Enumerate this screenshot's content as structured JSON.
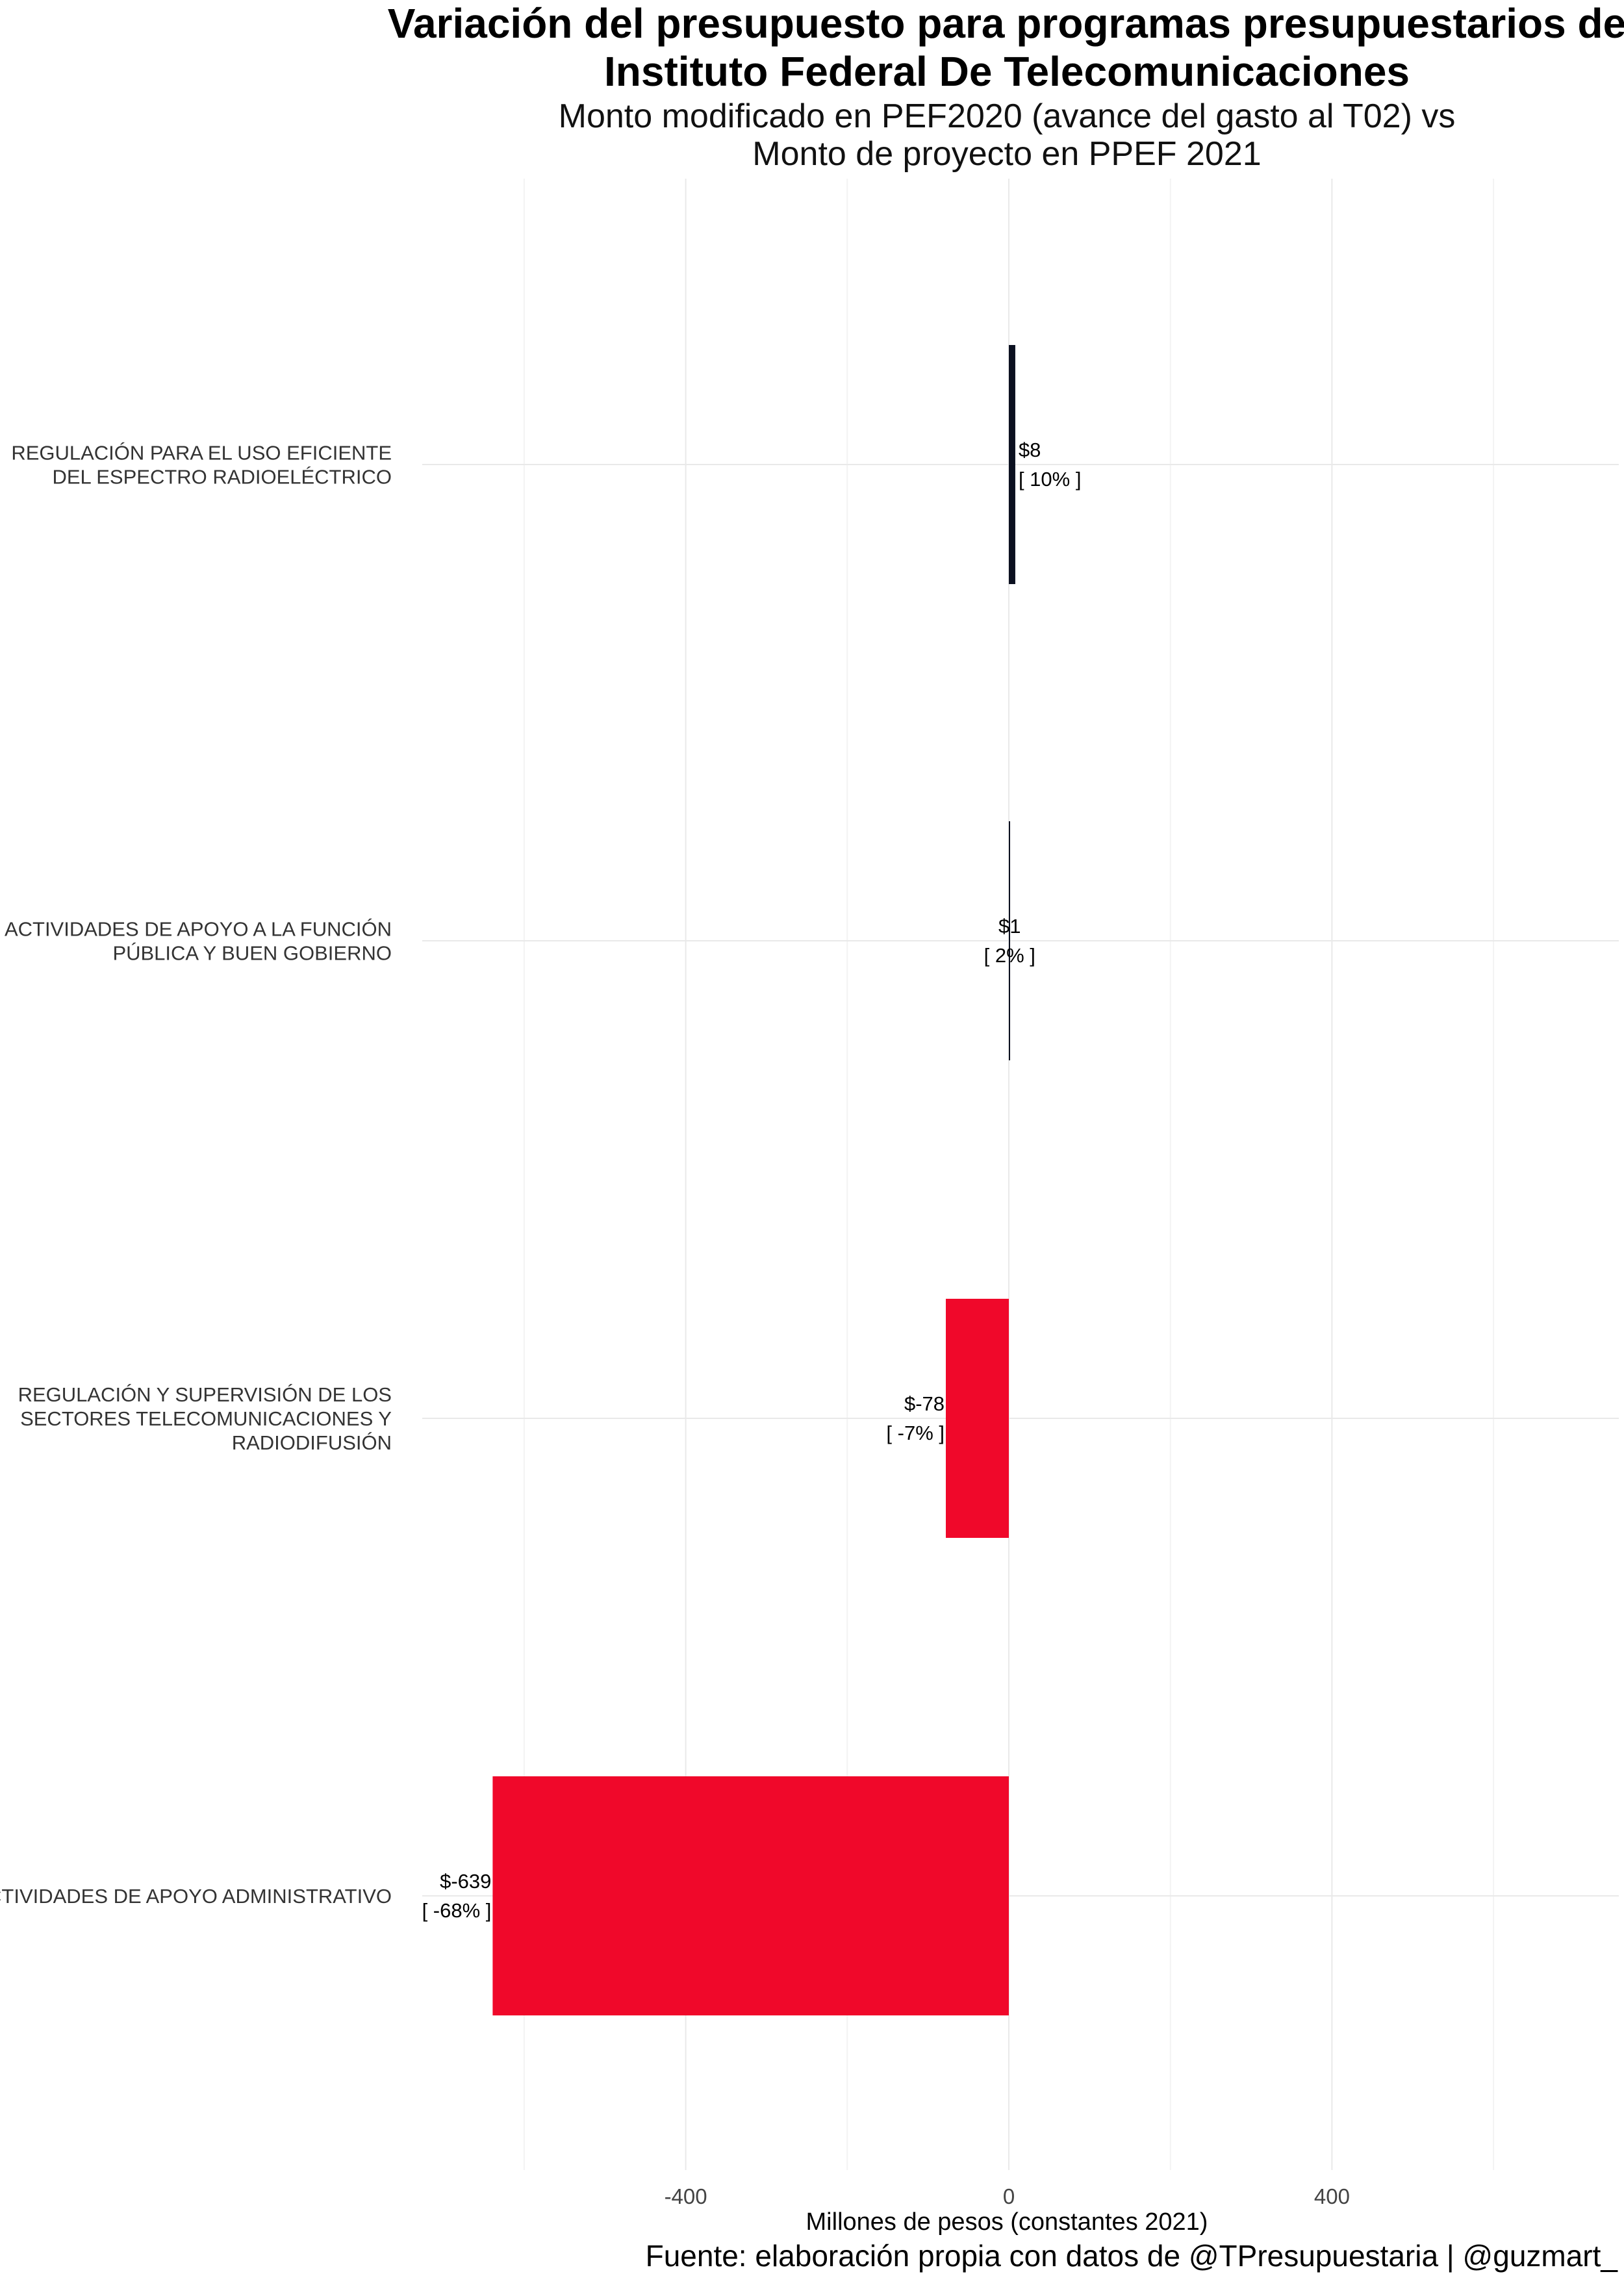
{
  "chart_data": {
    "type": "bar",
    "orientation": "horizontal",
    "title_lines": [
      "Variación del presupuesto para programas presupuestarios de",
      "Instituto Federal De Telecomunicaciones"
    ],
    "subtitle_lines": [
      "Monto modificado en PEF2020 (avance del gasto al T02) vs",
      "Monto de proyecto en PPEF 2021"
    ],
    "xlabel": "Millones de pesos (constantes 2021)",
    "caption": "Fuente: elaboración propia con datos de @TPresupuestaria | @guzmart_",
    "xlim": [
      -640,
      760
    ],
    "xticks": [
      -400,
      0,
      400
    ],
    "xtick_labels": [
      "-400",
      "0",
      "400"
    ],
    "grid": true,
    "legend": "none",
    "categories": [
      {
        "lines": [
          "REGULACIÓN PARA EL USO EFICIENTE",
          "DEL ESPECTRO RADIOELÉCTRICO"
        ],
        "value": 8,
        "label": "$8",
        "pct_label": "[ 10% ]",
        "color": "#0b1020"
      },
      {
        "lines": [
          "ACTIVIDADES DE APOYO A LA FUNCIÓN",
          "PÚBLICA Y BUEN GOBIERNO"
        ],
        "value": 1,
        "label": "$1",
        "pct_label": "[ 2% ]",
        "color": "#0b1020"
      },
      {
        "lines": [
          "REGULACIÓN Y SUPERVISIÓN DE LOS",
          "SECTORES TELECOMUNICACIONES Y",
          "RADIODIFUSIÓN"
        ],
        "value": -78,
        "label": "$-78",
        "pct_label": "[ -7% ]",
        "color": "#f0082a"
      },
      {
        "lines": [
          "ACTIVIDADES DE APOYO ADMINISTRATIVO"
        ],
        "value": -639,
        "label": "$-639",
        "pct_label": "[ -68% ]",
        "color": "#f0082a"
      }
    ]
  }
}
